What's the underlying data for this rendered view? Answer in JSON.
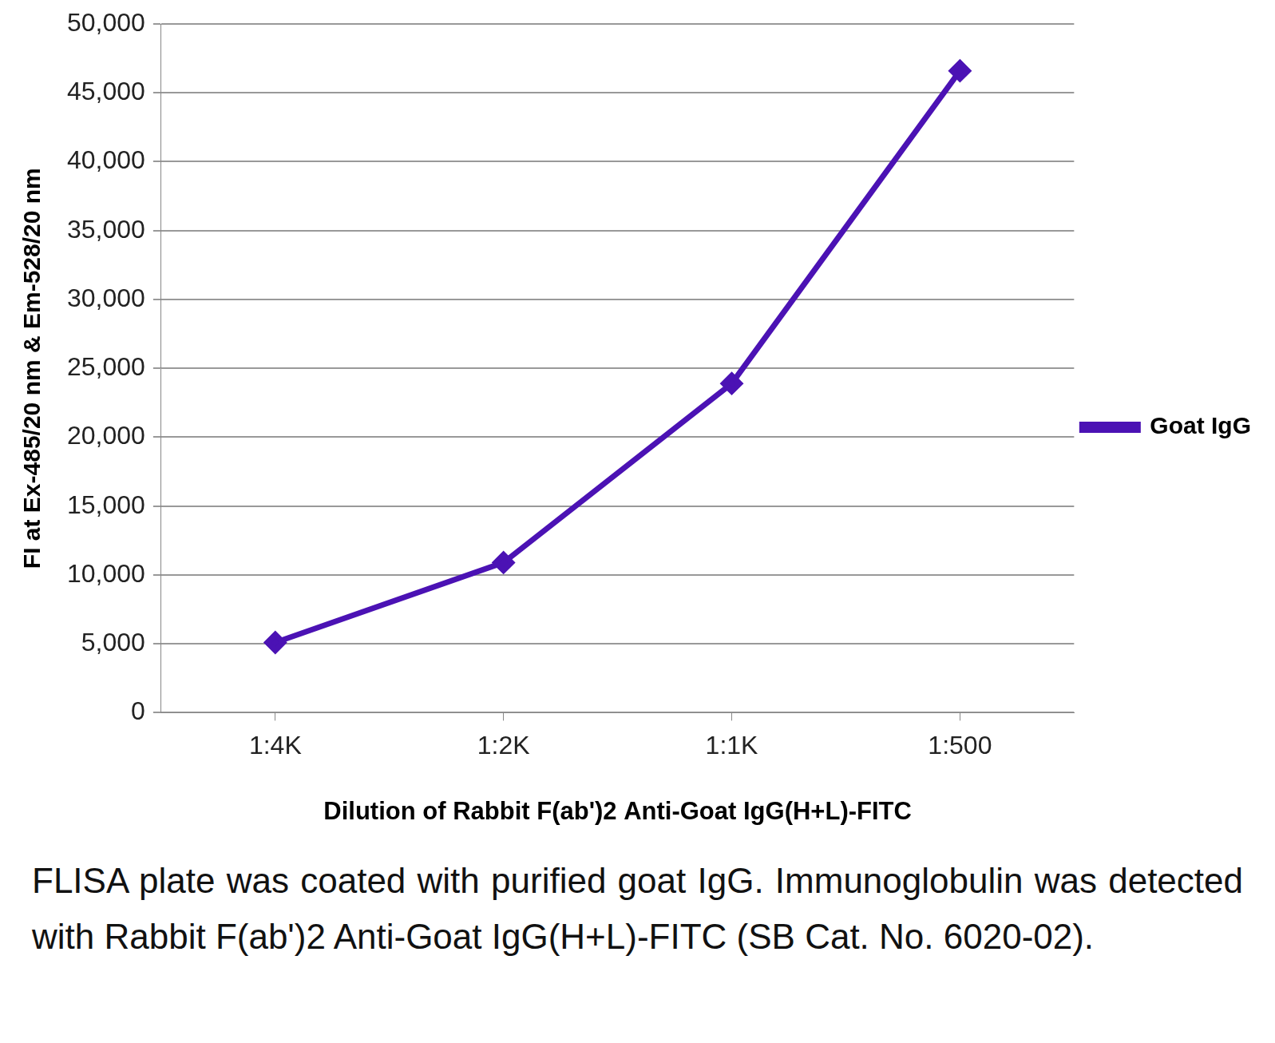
{
  "chart_data": {
    "type": "line",
    "x_label": "Dilution of Rabbit F(ab')2 Anti-Goat IgG(H+L)-FITC",
    "y_label": "FI at Ex-485/20 nm & Em-528/20 nm",
    "categories": [
      "1:4K",
      "1:2K",
      "1:1K",
      "1:500"
    ],
    "series": [
      {
        "name": "Goat IgG",
        "color": "#4b12b4",
        "marker": "diamond",
        "values": [
          5100,
          10900,
          23900,
          46600
        ]
      }
    ],
    "ylim": [
      0,
      50000
    ],
    "yticks": [
      0,
      5000,
      10000,
      15000,
      20000,
      25000,
      30000,
      35000,
      40000,
      45000,
      50000
    ],
    "grid": true,
    "legend": "right",
    "caption": "FLISA plate was coated with purified goat IgG. Immunoglobulin was detected with Rabbit F(ab')2 Anti-Goat IgG(H+L)-FITC (SB Cat. No. 6020-02)."
  }
}
